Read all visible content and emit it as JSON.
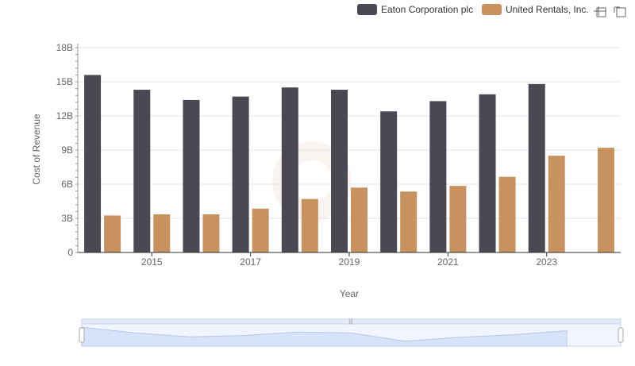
{
  "toolbar": {
    "icons": [
      "zoom-icon",
      "zoom-reset-icon"
    ]
  },
  "colors": {
    "eaton": "#4a4953",
    "united": "#c8925f",
    "grid": "#e6e6e6",
    "axis": "#333333",
    "slider_fill": "#d7e3fa",
    "slider_border": "#c9d6f0"
  },
  "chart_data": {
    "type": "bar",
    "xlabel": "Year",
    "ylabel": "Cost of Revenue",
    "ylim": [
      0,
      18000000000
    ],
    "yticks": [
      "0",
      "3B",
      "6B",
      "9B",
      "12B",
      "15B",
      "18B"
    ],
    "ytick_values": [
      0,
      3000000000,
      6000000000,
      9000000000,
      12000000000,
      15000000000,
      18000000000
    ],
    "x": [
      2014,
      2015,
      2016,
      2017,
      2018,
      2019,
      2020,
      2021,
      2022,
      2023,
      2024
    ],
    "xtick_labels": [
      "2015",
      "2017",
      "2019",
      "2021",
      "2023"
    ],
    "legend_position": "top-right",
    "grid": true,
    "series": [
      {
        "name": "Eaton Corporation plc",
        "values": [
          15600000000,
          14300000000,
          13400000000,
          13700000000,
          14500000000,
          14300000000,
          12400000000,
          13300000000,
          13900000000,
          14800000000,
          null
        ]
      },
      {
        "name": "United Rentals, Inc.",
        "values": [
          3250000000,
          3350000000,
          3350000000,
          3850000000,
          4700000000,
          5700000000,
          5350000000,
          5850000000,
          6650000000,
          8500000000,
          9200000000
        ]
      }
    ]
  }
}
